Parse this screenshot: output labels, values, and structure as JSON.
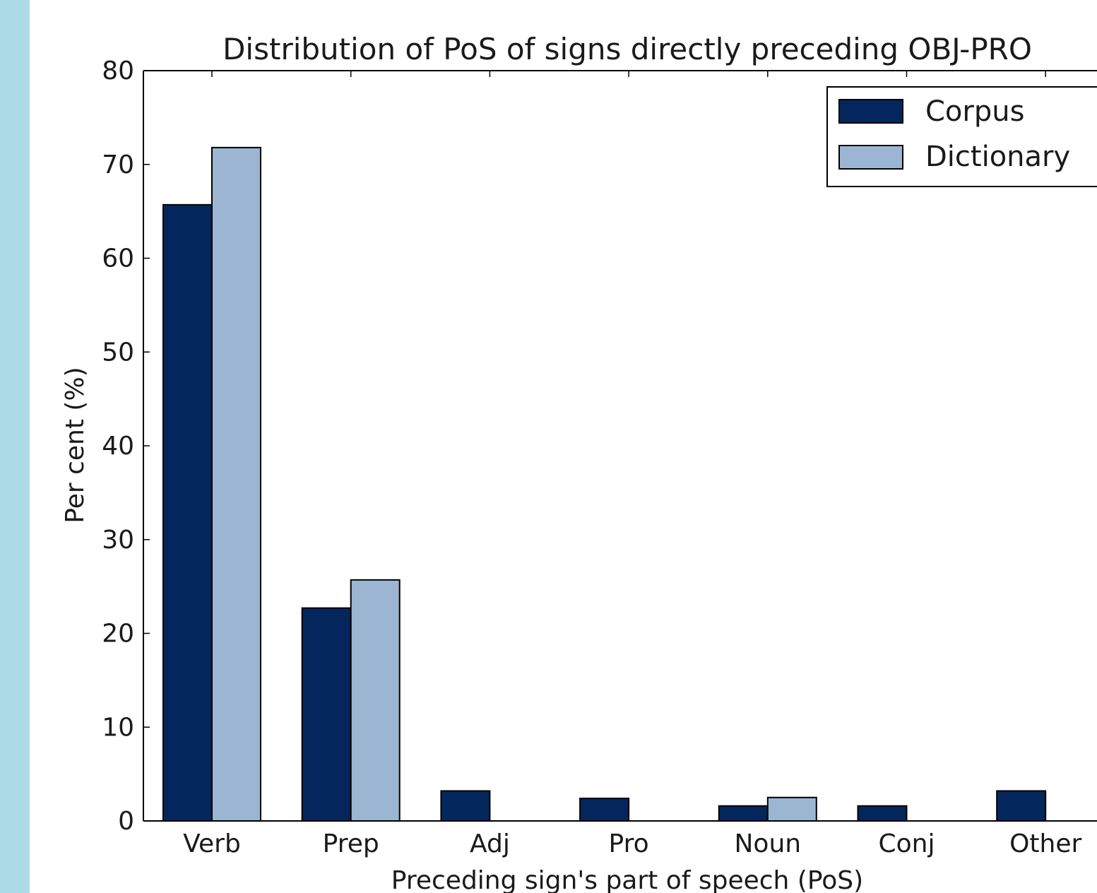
{
  "colors": {
    "side_strip": "#aedce6",
    "corpus": "#03275c",
    "dictionary": "#9cb5d2",
    "axis": "#000000"
  },
  "chart_data": {
    "type": "bar",
    "title": "Distribution of PoS of signs directly preceding OBJ-PRO",
    "xlabel": "Preceding sign's part of speech (PoS)",
    "ylabel": "Per cent (%)",
    "categories": [
      "Verb",
      "Prep",
      "Adj",
      "Pro",
      "Noun",
      "Conj",
      "Other"
    ],
    "series": [
      {
        "name": "Corpus",
        "values": [
          65.7,
          22.7,
          3.2,
          2.4,
          1.6,
          1.6,
          3.2
        ]
      },
      {
        "name": "Dictionary",
        "values": [
          71.8,
          25.7,
          0.0,
          0.0,
          2.5,
          0.0,
          0.0
        ]
      }
    ],
    "ylim": [
      0,
      80
    ],
    "yticks": [
      0,
      10,
      20,
      30,
      40,
      50,
      60,
      70,
      80
    ],
    "legend_position": "top-right",
    "grid": false
  }
}
